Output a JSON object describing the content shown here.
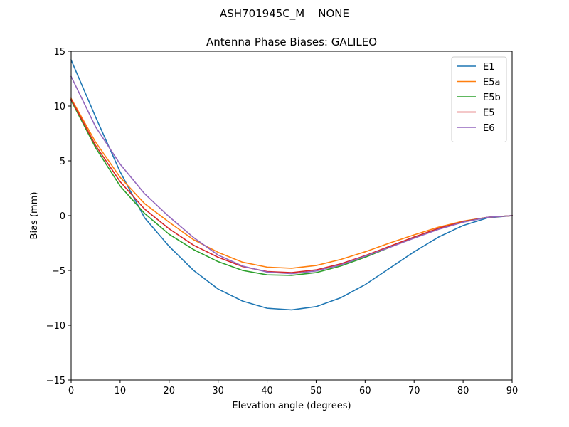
{
  "figure": {
    "suptitle": "ASH701945C_M    NONE"
  },
  "chart_data": {
    "type": "line",
    "title": "Antenna Phase Biases: GALILEO",
    "xlabel": "Elevation angle (degrees)",
    "ylabel": "Bias (mm)",
    "xlim": [
      0,
      90
    ],
    "ylim": [
      -15,
      15
    ],
    "xticks": [
      0,
      10,
      20,
      30,
      40,
      50,
      60,
      70,
      80,
      90
    ],
    "yticks": [
      -15,
      -10,
      -5,
      0,
      5,
      10,
      15
    ],
    "ytick_labels": [
      "−15",
      "−10",
      "−5",
      "0",
      "5",
      "10",
      "15"
    ],
    "grid": false,
    "legend_position": "top-right",
    "x": [
      0,
      5,
      10,
      15,
      20,
      25,
      30,
      35,
      40,
      45,
      50,
      55,
      60,
      65,
      70,
      75,
      80,
      85,
      90
    ],
    "series": [
      {
        "name": "E1",
        "color": "#1f77b4",
        "values": [
          14.2,
          9.0,
          4.0,
          -0.2,
          -2.8,
          -5.0,
          -6.7,
          -7.8,
          -8.45,
          -8.6,
          -8.3,
          -7.5,
          -6.3,
          -4.8,
          -3.3,
          -1.95,
          -0.9,
          -0.2,
          0.0
        ]
      },
      {
        "name": "E5a",
        "color": "#ff7f0e",
        "values": [
          10.7,
          6.7,
          3.5,
          1.1,
          -0.6,
          -2.2,
          -3.35,
          -4.25,
          -4.7,
          -4.8,
          -4.55,
          -4.0,
          -3.3,
          -2.5,
          -1.75,
          -1.05,
          -0.5,
          -0.15,
          0.0
        ]
      },
      {
        "name": "E5b",
        "color": "#2ca02c",
        "values": [
          10.5,
          6.2,
          2.7,
          0.2,
          -1.7,
          -3.1,
          -4.2,
          -5.0,
          -5.4,
          -5.45,
          -5.2,
          -4.6,
          -3.8,
          -2.9,
          -2.0,
          -1.2,
          -0.55,
          -0.15,
          0.0
        ]
      },
      {
        "name": "E5",
        "color": "#d62728",
        "values": [
          10.6,
          6.4,
          3.1,
          0.6,
          -1.2,
          -2.7,
          -3.8,
          -4.65,
          -5.1,
          -5.2,
          -4.95,
          -4.4,
          -3.65,
          -2.8,
          -1.95,
          -1.15,
          -0.55,
          -0.15,
          0.0
        ]
      },
      {
        "name": "E6",
        "color": "#9467bd",
        "values": [
          12.7,
          8.1,
          4.7,
          2.0,
          -0.1,
          -2.0,
          -3.6,
          -4.6,
          -5.15,
          -5.3,
          -5.05,
          -4.5,
          -3.7,
          -2.9,
          -2.05,
          -1.25,
          -0.6,
          -0.15,
          0.0
        ]
      }
    ]
  }
}
